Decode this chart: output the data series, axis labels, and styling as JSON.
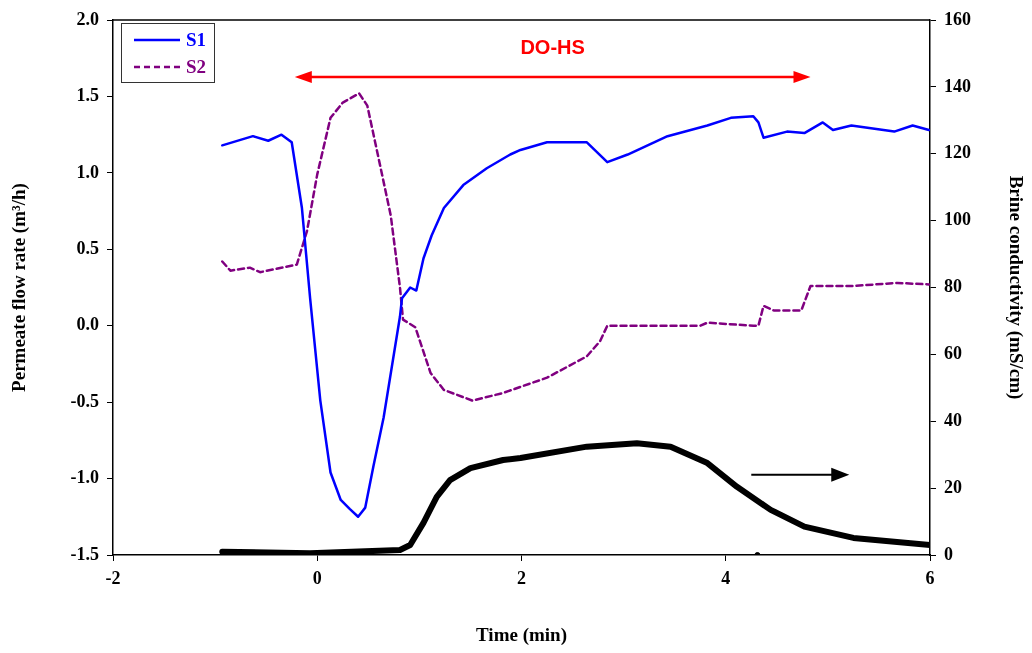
{
  "chart_data": {
    "type": "line",
    "xlabel": "Time (min)",
    "ylabel": "Permeate flow rate (m³/h)",
    "y2label": "Brine conductivity (mS/cm)",
    "xlim": [
      -2,
      6
    ],
    "xticks": [
      -2,
      0,
      2,
      4,
      6
    ],
    "ylim": [
      -1.5,
      2
    ],
    "yticks": [
      {
        "value": -1.5,
        "label": "-1.5"
      },
      {
        "value": -1,
        "label": "-1.0"
      },
      {
        "value": -0.5,
        "label": "-0.5"
      },
      {
        "value": 0,
        "label": "0.0"
      },
      {
        "value": 0.5,
        "label": "0.5"
      },
      {
        "value": 1,
        "label": "1.0"
      },
      {
        "value": 1.5,
        "label": "1.5"
      },
      {
        "value": 2,
        "label": "2.0"
      }
    ],
    "y2lim": [
      0,
      160
    ],
    "y2ticks": [
      0,
      20,
      40,
      60,
      80,
      100,
      120,
      140,
      160
    ],
    "grid": false,
    "legend": "top left",
    "marker": "none",
    "annotations": [
      "DO-HS"
    ],
    "series": [
      {
        "name": "S1",
        "color": "#0000ff",
        "line_style": "solid",
        "x": [
          -0.93,
          -0.63,
          -0.48,
          -0.35,
          -0.25,
          -0.15,
          -0.07,
          0.03,
          0.13,
          0.23,
          0.32,
          0.4,
          0.47,
          0.55,
          0.65,
          0.73,
          0.81,
          0.83,
          0.91,
          0.97,
          1.04,
          1.12,
          1.24,
          1.43,
          1.66,
          1.89,
          1.99,
          2.25,
          2.64,
          2.84,
          3.04,
          3.43,
          3.82,
          4.05,
          4.27,
          4.32,
          4.37,
          4.6,
          4.77,
          4.95,
          5.05,
          5.23,
          5.65,
          5.83,
          5.99
        ],
        "values": [
          1.18,
          1.24,
          1.21,
          1.25,
          1.2,
          0.77,
          0.18,
          -0.49,
          -0.96,
          -1.14,
          -1.2,
          -1.25,
          -1.19,
          -0.92,
          -0.6,
          -0.27,
          0.06,
          0.18,
          0.25,
          0.23,
          0.44,
          0.59,
          0.77,
          0.92,
          1.03,
          1.12,
          1.15,
          1.2,
          1.2,
          1.07,
          1.12,
          1.24,
          1.31,
          1.36,
          1.37,
          1.33,
          1.23,
          1.27,
          1.26,
          1.33,
          1.28,
          1.31,
          1.27,
          1.31,
          1.28
        ]
      },
      {
        "name": "S2",
        "color": "#800080",
        "line_style": "dashed",
        "x": [
          -0.93,
          -0.85,
          -0.66,
          -0.56,
          -0.2,
          -0.1,
          0,
          0.13,
          0.25,
          0.41,
          0.49,
          0.58,
          0.72,
          0.81,
          0.84,
          0.96,
          1.11,
          1.24,
          1.52,
          1.82,
          1.99,
          2.25,
          2.64,
          2.77,
          2.84,
          3.75,
          3.82,
          4.27,
          4.32,
          4.37,
          4.47,
          4.74,
          4.83,
          5.25,
          5.68,
          5.99
        ],
        "values": [
          0.42,
          0.36,
          0.38,
          0.35,
          0.4,
          0.62,
          0.99,
          1.36,
          1.46,
          1.52,
          1.44,
          1.16,
          0.72,
          0.25,
          0.04,
          -0.01,
          -0.31,
          -0.42,
          -0.49,
          -0.44,
          -0.4,
          -0.34,
          -0.2,
          -0.1,
          0,
          0,
          0.02,
          0,
          0,
          0.13,
          0.1,
          0.1,
          0.26,
          0.26,
          0.28,
          0.27
        ]
      },
      {
        "color": "#000000",
        "axis": "y2",
        "line_style": "solid",
        "x": [
          -0.93,
          -0.07,
          0.81,
          0.91,
          1.04,
          1.17,
          1.3,
          1.5,
          1.82,
          1.99,
          2.64,
          3.13,
          3.46,
          3.82,
          4.11,
          4.44,
          4.77,
          5.25,
          6.0
        ],
        "values": [
          1,
          0.5,
          1.5,
          3,
          9.6,
          17.4,
          22.4,
          26,
          28.4,
          29,
          32.4,
          33.4,
          32.4,
          27.5,
          20.4,
          13.5,
          8.5,
          5.1,
          3
        ]
      },
      {
        "type": "scatter",
        "color": "#000000",
        "axis": "y2",
        "marker": "circle",
        "x": [
          4.31
        ],
        "values": [
          0
        ]
      }
    ]
  }
}
